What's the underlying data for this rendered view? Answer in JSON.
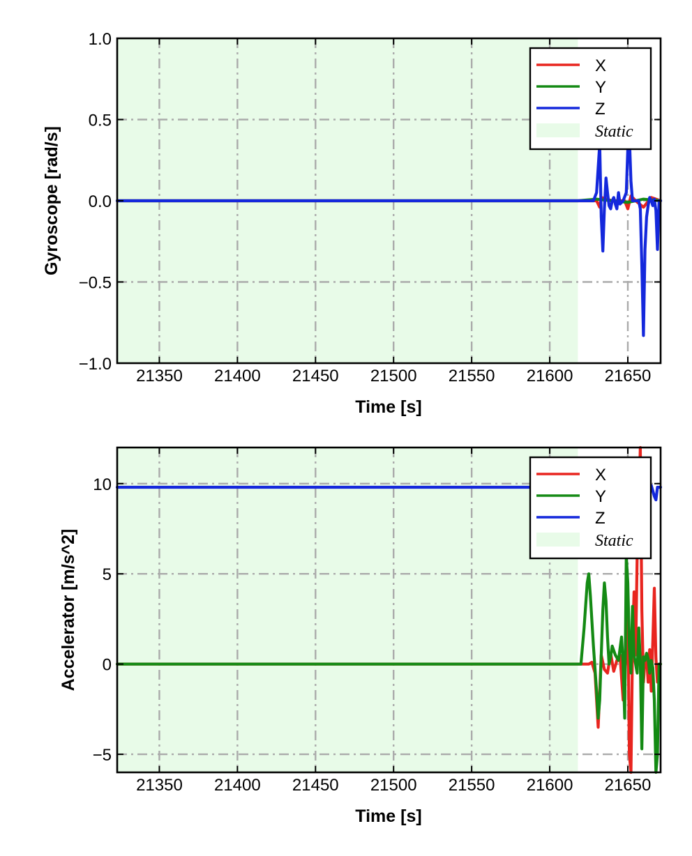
{
  "chart_data": [
    {
      "type": "line",
      "xlabel": "Time [s]",
      "ylabel": "Gyroscope [rad/s]",
      "xlim": [
        21323,
        21671
      ],
      "ylim": [
        -1.0,
        1.0
      ],
      "xticks": [
        21350,
        21400,
        21450,
        21500,
        21550,
        21600,
        21650
      ],
      "xtick_labels": [
        "21350",
        "21400",
        "21450",
        "21500",
        "21550",
        "21600",
        "21650"
      ],
      "yticks": [
        -1.0,
        -0.5,
        0.0,
        0.5,
        1.0
      ],
      "ytick_labels": [
        "−1.0",
        "−0.5",
        "0.0",
        "0.5",
        "1.0"
      ],
      "grid": true,
      "legend_position": "top-right",
      "static_region": {
        "label": "Static",
        "x": [
          21323,
          21618
        ],
        "color": "#e8fbe8"
      },
      "series": [
        {
          "name": "X",
          "color": "#e8251f",
          "x": [
            21323,
            21618,
            21630,
            21632,
            21633,
            21640,
            21648,
            21650,
            21652,
            21655,
            21660,
            21665,
            21671
          ],
          "y": [
            0.0,
            0.0,
            0.0,
            -0.04,
            0.02,
            0.0,
            0.0,
            -0.05,
            0.03,
            0.0,
            -0.04,
            0.02,
            0.0
          ]
        },
        {
          "name": "Y",
          "color": "#148a14",
          "x": [
            21323,
            21618,
            21630,
            21640,
            21650,
            21660,
            21671
          ],
          "y": [
            0.0,
            0.0,
            0.01,
            0.0,
            -0.01,
            0.01,
            0.0
          ]
        },
        {
          "name": "Z",
          "color": "#1428dc",
          "x": [
            21323,
            21628,
            21630,
            21632,
            21633,
            21634,
            21635,
            21636,
            21637,
            21638,
            21639,
            21640,
            21641,
            21642,
            21643,
            21644,
            21645,
            21647,
            21649,
            21650,
            21651,
            21652,
            21653,
            21654,
            21656,
            21657,
            21658,
            21659,
            21660,
            21661,
            21662,
            21663,
            21664,
            21665,
            21666,
            21667,
            21668,
            21669,
            21670,
            21671
          ],
          "y": [
            0.0,
            0.0,
            0.05,
            0.35,
            -0.1,
            -0.31,
            -0.05,
            0.14,
            0.05,
            -0.03,
            -0.05,
            0.0,
            0.02,
            -0.02,
            -0.05,
            0.05,
            -0.02,
            0.0,
            0.05,
            0.32,
            0.4,
            0.12,
            0.0,
            0.0,
            0.0,
            0.0,
            -0.05,
            -0.4,
            -0.83,
            -0.3,
            -0.1,
            -0.03,
            0.02,
            0.0,
            -0.03,
            0.01,
            -0.06,
            -0.3,
            0.0,
            0.0
          ]
        }
      ]
    },
    {
      "type": "line",
      "xlabel": "Time [s]",
      "ylabel": "Accelerator [m/s^2]",
      "xlim": [
        21323,
        21671
      ],
      "ylim": [
        -6,
        12
      ],
      "xticks": [
        21350,
        21400,
        21450,
        21500,
        21550,
        21600,
        21650
      ],
      "xtick_labels": [
        "21350",
        "21400",
        "21450",
        "21500",
        "21550",
        "21600",
        "21650"
      ],
      "yticks": [
        -5,
        0,
        5,
        10
      ],
      "ytick_labels": [
        "−5",
        "0",
        "5",
        "10"
      ],
      "grid": true,
      "legend_position": "top-right",
      "static_region": {
        "label": "Static",
        "x": [
          21323,
          21618
        ],
        "color": "#e8fbe8"
      },
      "series": [
        {
          "name": "X",
          "color": "#e8251f",
          "x": [
            21323,
            21625,
            21627,
            21629,
            21631,
            21633,
            21635,
            21637,
            21639,
            21641,
            21643,
            21645,
            21647,
            21649,
            21650,
            21651,
            21652,
            21653,
            21654,
            21655,
            21656,
            21657,
            21658,
            21659,
            21660,
            21661,
            21662,
            21663,
            21664,
            21665,
            21666,
            21667,
            21668,
            21669,
            21670,
            21671
          ],
          "y": [
            0.0,
            0.0,
            0.1,
            -0.5,
            -3.5,
            0.5,
            -0.3,
            -0.5,
            0.6,
            -0.4,
            0.2,
            0.5,
            -2.0,
            0.8,
            3.0,
            -5.0,
            -6.0,
            0.8,
            4.0,
            0.5,
            6.0,
            8.5,
            12.0,
            3.0,
            -1.0,
            0.2,
            0.5,
            -1.0,
            0.8,
            -1.5,
            1.2,
            4.2,
            0.3,
            -1.0,
            0.0,
            0.0
          ]
        },
        {
          "name": "Y",
          "color": "#148a14",
          "x": [
            21323,
            21620,
            21622,
            21624,
            21625,
            21626,
            21628,
            21630,
            21631,
            21632,
            21633,
            21634,
            21635,
            21636,
            21637,
            21638,
            21639,
            21640,
            21642,
            21644,
            21646,
            21647,
            21648,
            21649,
            21650,
            21651,
            21652,
            21653,
            21654,
            21655,
            21656,
            21657,
            21658,
            21659,
            21660,
            21661,
            21662,
            21663,
            21664,
            21665,
            21666,
            21667,
            21668,
            21669,
            21670,
            21671
          ],
          "y": [
            0.0,
            0.0,
            2.0,
            4.5,
            5.0,
            3.8,
            1.0,
            -1.5,
            -3.0,
            -2.0,
            0.5,
            3.0,
            4.5,
            3.5,
            1.5,
            0.0,
            0.4,
            1.0,
            0.5,
            0.2,
            1.5,
            0.0,
            -3.0,
            6.0,
            4.5,
            1.0,
            -0.5,
            3.2,
            0.5,
            0.0,
            -0.5,
            2.0,
            0.2,
            -4.7,
            0.4,
            0.2,
            0.6,
            0.3,
            -0.5,
            0.2,
            -0.2,
            -2.0,
            -6.0,
            -5.0,
            0.0,
            0.0
          ]
        },
        {
          "name": "Z",
          "color": "#1428dc",
          "x": [
            21323,
            21664,
            21665,
            21666,
            21667,
            21668,
            21669,
            21670,
            21671
          ],
          "y": [
            9.8,
            9.8,
            9.9,
            9.6,
            9.3,
            9.1,
            9.8,
            9.8,
            9.8
          ]
        }
      ]
    }
  ]
}
